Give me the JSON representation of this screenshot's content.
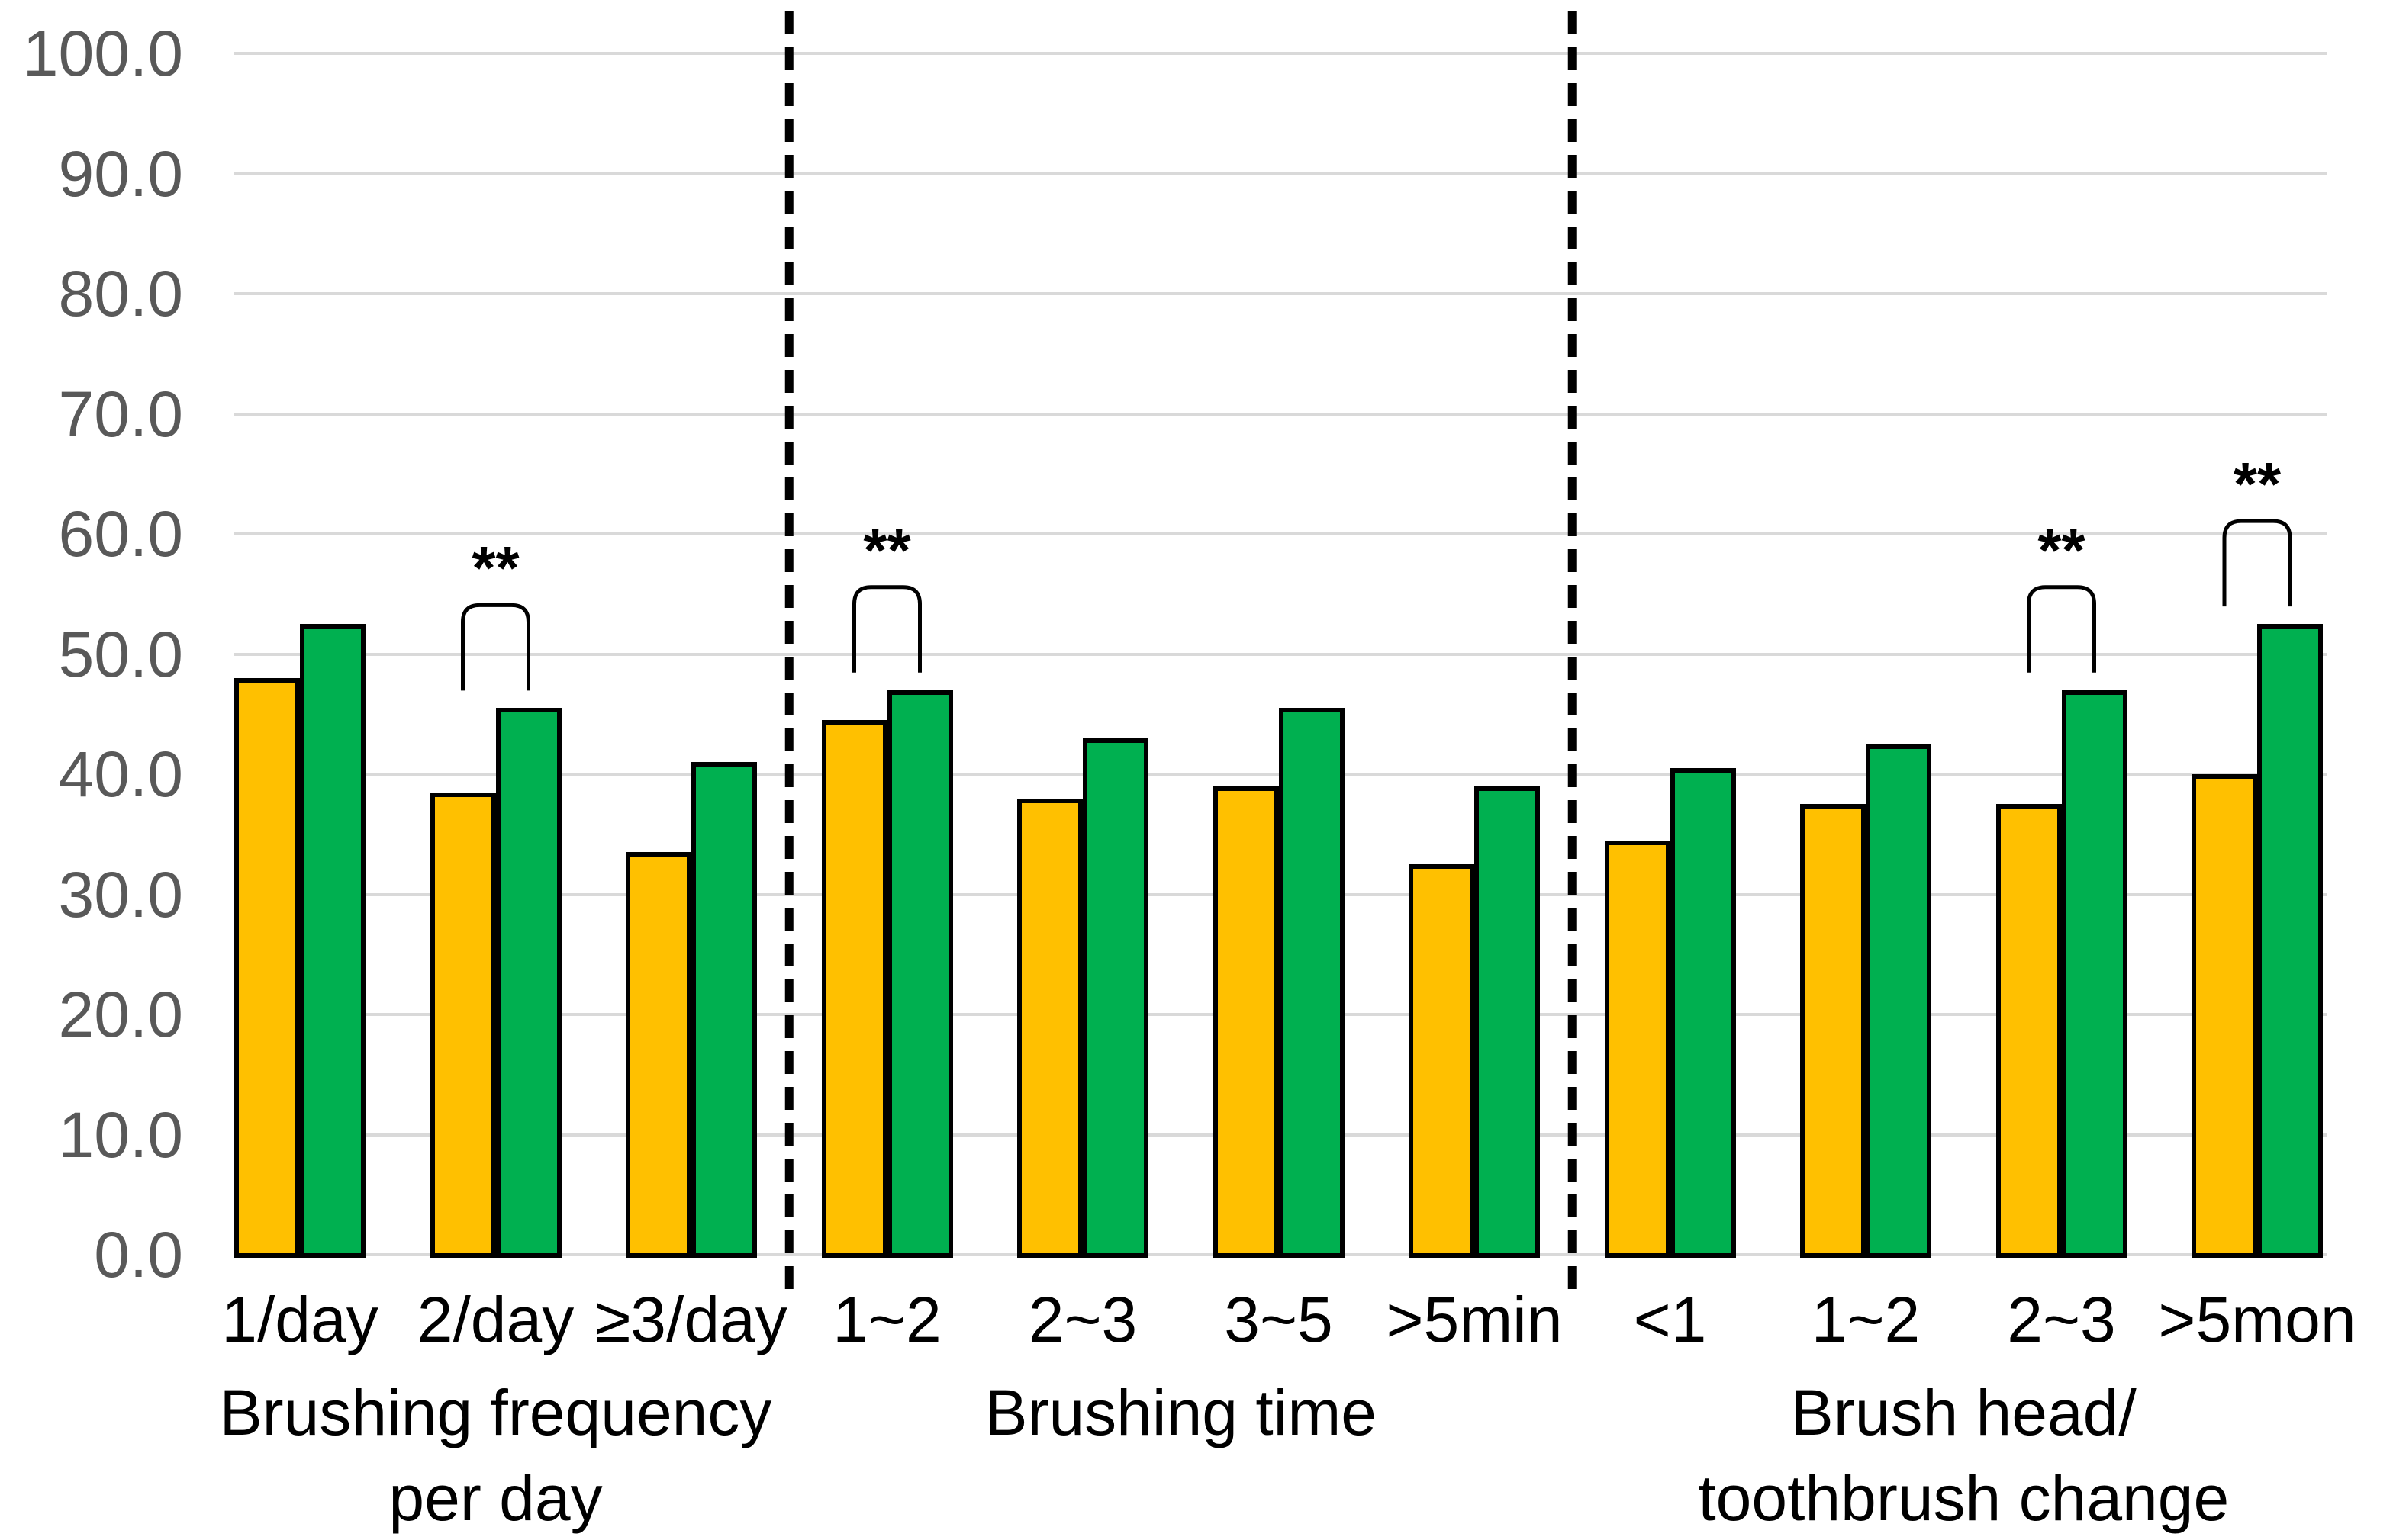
{
  "chart_data": {
    "type": "bar",
    "title": "",
    "xlabel": "",
    "ylabel": "",
    "ylim": [
      0,
      100
    ],
    "grid": true,
    "legend": "none",
    "yticks": [
      {
        "value": 100,
        "label": "100.0"
      },
      {
        "value": 90,
        "label": "90.0"
      },
      {
        "value": 80,
        "label": "80.0"
      },
      {
        "value": 70,
        "label": "70.0"
      },
      {
        "value": 60,
        "label": "60.0"
      },
      {
        "value": 50,
        "label": "50.0"
      },
      {
        "value": 40,
        "label": "40.0"
      },
      {
        "value": 30,
        "label": "30.0"
      },
      {
        "value": 20,
        "label": "20.0"
      },
      {
        "value": 10,
        "label": "10.0"
      },
      {
        "value": 0,
        "label": "0.0"
      }
    ],
    "colors": {
      "orange_series": "#FFC000",
      "green_series": "#00B050",
      "bar_outline": "#000000",
      "gridline": "#D9D9D9",
      "ytick_text": "#595959",
      "label_text": "#000000",
      "separator_line": "#000000"
    },
    "groups": [
      {
        "label_lines": [
          "Brushing frequency",
          "per day"
        ],
        "categories": [
          "1/day",
          "2/day",
          "≥3/day"
        ]
      },
      {
        "label_lines": [
          "Brushing time"
        ],
        "categories": [
          "1~2",
          "2~3",
          "3~5",
          ">5min"
        ]
      },
      {
        "label_lines": [
          "Brush head/",
          "toothbrush change"
        ],
        "categories": [
          "<1",
          "1~2",
          "2~3",
          ">5mon"
        ]
      }
    ],
    "series": [
      {
        "name": "orange-series",
        "color": "#FFC000",
        "values": [
          48.0,
          38.5,
          33.5,
          44.5,
          38.0,
          39.0,
          32.5,
          34.5,
          37.5,
          37.5,
          40.0
        ]
      },
      {
        "name": "green-series",
        "color": "#00B050",
        "values": [
          52.5,
          45.5,
          41.0,
          47.0,
          43.0,
          45.5,
          39.0,
          40.5,
          42.5,
          47.0,
          52.5
        ]
      }
    ],
    "significance": [
      {
        "category_index": 1,
        "label": "**"
      },
      {
        "category_index": 3,
        "label": "**"
      },
      {
        "category_index": 9,
        "label": "**"
      },
      {
        "category_index": 10,
        "label": "**"
      }
    ]
  }
}
